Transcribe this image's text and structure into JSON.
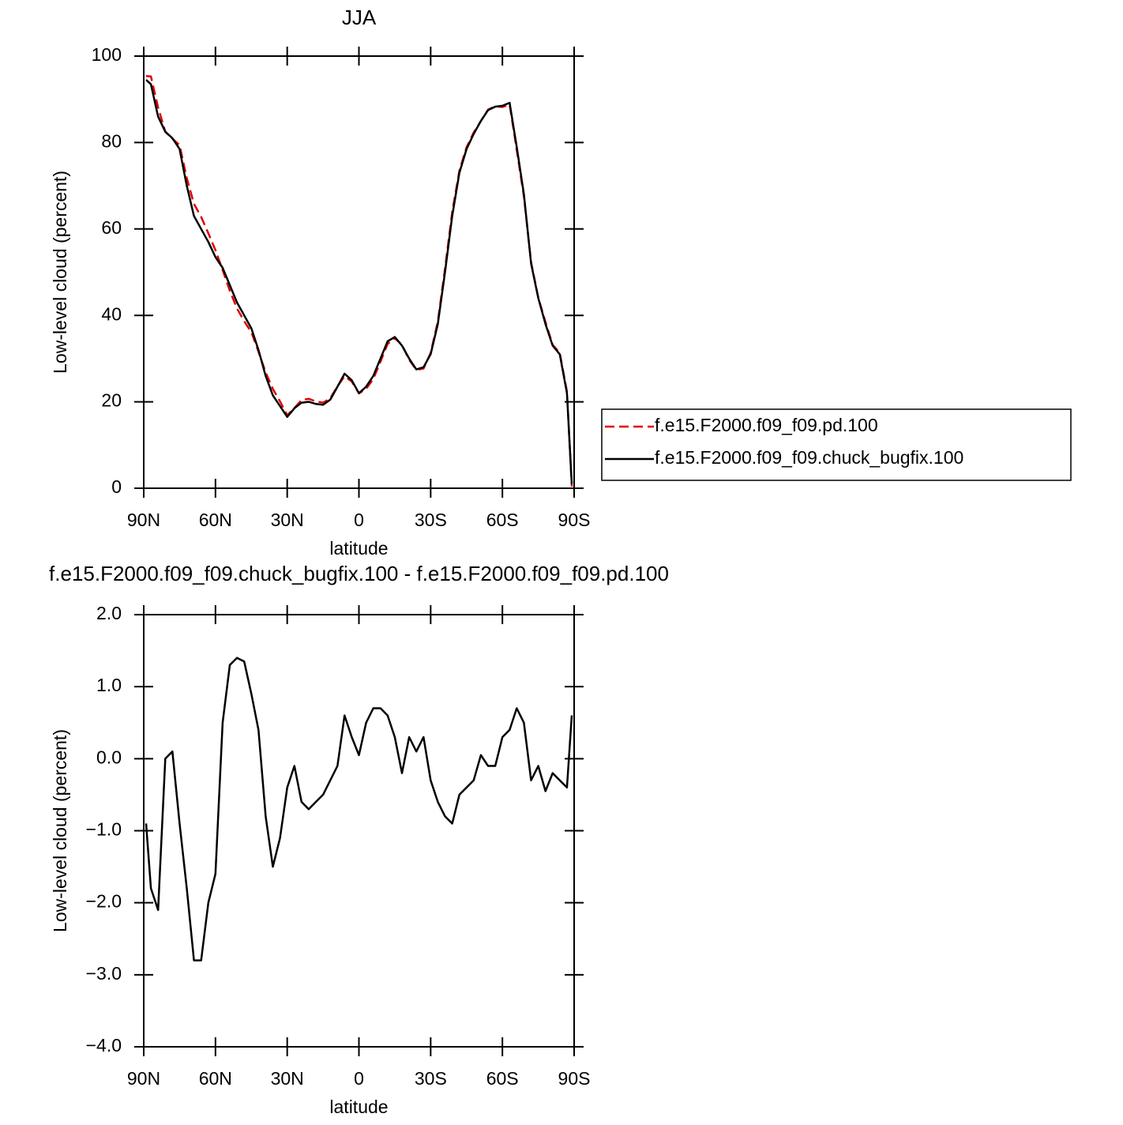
{
  "chart_data": [
    {
      "type": "line",
      "title": "JJA",
      "xlabel": "latitude",
      "ylabel": "Low-level cloud (percent)",
      "x": [
        89,
        87,
        84,
        81,
        78,
        75,
        72,
        69,
        66,
        63,
        60,
        57,
        54,
        51,
        48,
        45,
        42,
        39,
        36,
        33,
        30,
        27,
        24,
        21,
        18,
        15,
        12,
        9,
        6,
        3,
        0,
        -3,
        -6,
        -9,
        -12,
        -15,
        -18,
        -21,
        -24,
        -27,
        -30,
        -33,
        -36,
        -39,
        -42,
        -45,
        -48,
        -51,
        -54,
        -57,
        -60,
        -63,
        -66,
        -69,
        -72,
        -75,
        -78,
        -81,
        -84,
        -87,
        -89
      ],
      "series": [
        {
          "name": "f.e15.F2000.f09_f09.pd.100",
          "color": "#e00000",
          "dash": "dashed",
          "values": [
            95.4,
            95.3,
            88.1,
            82.5,
            80.9,
            79.4,
            71.8,
            65.8,
            62.8,
            59.0,
            55.1,
            50.5,
            45.7,
            41.6,
            38.65,
            36.1,
            31.6,
            26.8,
            23.0,
            20.1,
            16.9,
            18.6,
            20.4,
            20.7,
            20.1,
            19.8,
            20.8,
            23.6,
            25.9,
            24.7,
            21.95,
            23.0,
            25.3,
            29.3,
            33.4,
            34.7,
            33.2,
            29.7,
            27.4,
            27.7,
            31.3,
            38.6,
            50.8,
            63.9,
            73.5,
            78.9,
            82.3,
            84.95,
            87.6,
            88.4,
            88.2,
            88.8,
            78.3,
            67.5,
            52.3,
            44.1,
            38.45,
            33.2,
            31.3,
            22.4,
            0.4
          ]
        },
        {
          "name": "f.e15.F2000.f09_f09.chuck_bugfix.100",
          "color": "#000000",
          "dash": "solid",
          "values": [
            94.5,
            93.5,
            86,
            82.5,
            81,
            78.5,
            70,
            63,
            60,
            57,
            53.5,
            51,
            47,
            43,
            40,
            37,
            32,
            26,
            21.5,
            19,
            16.5,
            18.5,
            19.8,
            20,
            19.5,
            19.3,
            20.5,
            23.5,
            26.5,
            25,
            22,
            23.5,
            26,
            30,
            34,
            35,
            33,
            30,
            27.5,
            28,
            31,
            38,
            50,
            63,
            73,
            78.5,
            82,
            85,
            87.5,
            88.3,
            88.5,
            89.2,
            79,
            68,
            52,
            44,
            38,
            33,
            31,
            22,
            1
          ]
        }
      ],
      "xlim": [
        90,
        -90
      ],
      "xticks": [
        {
          "value": 90,
          "label": "90N"
        },
        {
          "value": 60,
          "label": "60N"
        },
        {
          "value": 30,
          "label": "30N"
        },
        0,
        {
          "value": -30,
          "label": "30S"
        },
        {
          "value": -60,
          "label": "60S"
        },
        {
          "value": -90,
          "label": "90S"
        }
      ],
      "ylim": [
        0,
        100
      ],
      "yticks": [
        0,
        20,
        40,
        60,
        80,
        100
      ],
      "legend": "right"
    },
    {
      "type": "line",
      "title": "f.e15.F2000.f09_f09.chuck_bugfix.100 - f.e15.F2000.f09_f09.pd.100",
      "xlabel": "latitude",
      "ylabel": "Low-level cloud (percent)",
      "x": [
        89,
        87,
        84,
        81,
        78,
        75,
        72,
        69,
        66,
        63,
        60,
        57,
        54,
        51,
        48,
        45,
        42,
        39,
        36,
        33,
        30,
        27,
        24,
        21,
        18,
        15,
        12,
        9,
        6,
        3,
        0,
        -3,
        -6,
        -9,
        -12,
        -15,
        -18,
        -21,
        -24,
        -27,
        -30,
        -33,
        -36,
        -39,
        -42,
        -45,
        -48,
        -51,
        -54,
        -57,
        -60,
        -63,
        -66,
        -69,
        -72,
        -75,
        -78,
        -81,
        -84,
        -87,
        -89
      ],
      "series": [
        {
          "color": "#000000",
          "dash": "solid",
          "values": [
            -0.9,
            -1.8,
            -2.1,
            0.0,
            0.1,
            -0.9,
            -1.8,
            -2.8,
            -2.8,
            -2.0,
            -1.6,
            0.5,
            1.3,
            1.4,
            1.35,
            0.9,
            0.4,
            -0.8,
            -1.5,
            -1.1,
            -0.4,
            -0.1,
            -0.6,
            -0.7,
            -0.6,
            -0.5,
            -0.3,
            -0.1,
            0.6,
            0.3,
            0.05,
            0.5,
            0.7,
            0.7,
            0.6,
            0.3,
            -0.2,
            0.3,
            0.1,
            0.3,
            -0.3,
            -0.6,
            -0.8,
            -0.9,
            -0.5,
            -0.4,
            -0.3,
            0.05,
            -0.1,
            -0.1,
            0.3,
            0.4,
            0.7,
            0.5,
            -0.3,
            -0.1,
            -0.45,
            -0.2,
            -0.3,
            -0.4,
            0.6
          ]
        }
      ],
      "xlim": [
        90,
        -90
      ],
      "xticks": [
        {
          "value": 90,
          "label": "90N"
        },
        {
          "value": 60,
          "label": "60N"
        },
        {
          "value": 30,
          "label": "30N"
        },
        0,
        {
          "value": -30,
          "label": "30S"
        },
        {
          "value": -60,
          "label": "60S"
        },
        {
          "value": -90,
          "label": "90S"
        }
      ],
      "ylim": [
        -4,
        2
      ],
      "yticks": [
        {
          "value": -4,
          "label": "−4.0"
        },
        {
          "value": -3,
          "label": "−3.0"
        },
        {
          "value": -2,
          "label": "−2.0"
        },
        {
          "value": -1,
          "label": "−1.0"
        },
        {
          "value": 0,
          "label": "0.0"
        },
        {
          "value": 1,
          "label": "1.0"
        },
        {
          "value": 2,
          "label": "2.0"
        }
      ]
    }
  ]
}
